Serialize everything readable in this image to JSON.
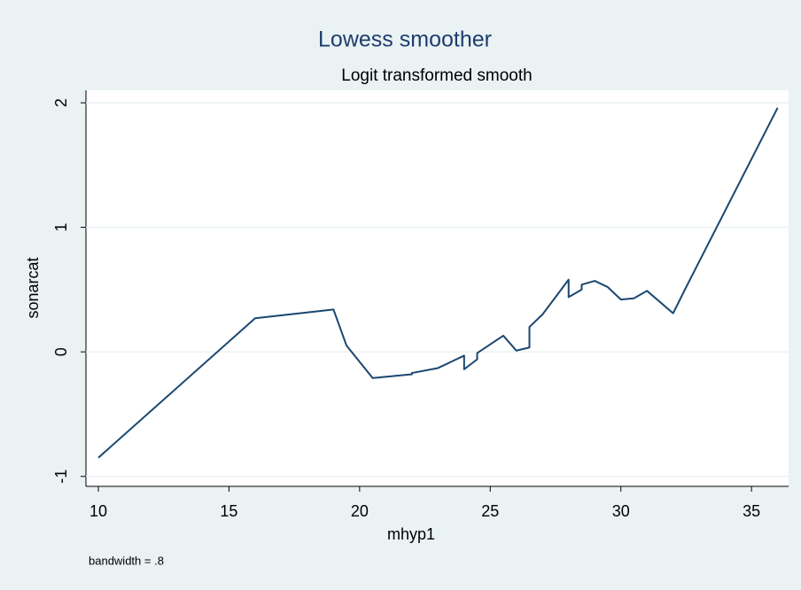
{
  "chart_data": {
    "type": "line",
    "title": "Lowess smoother",
    "subtitle": "Logit transformed smooth",
    "x_label": "mhyp1",
    "y_label": "sonarcat",
    "note": "bandwidth = .8",
    "x": [
      10,
      16,
      19,
      19.5,
      20.5,
      22,
      22,
      23,
      24,
      24,
      24.5,
      24.5,
      25.5,
      26,
      26.5,
      26.5,
      27,
      28,
      28,
      28.5,
      28.5,
      29,
      29.5,
      30,
      30.5,
      31,
      32,
      32.5,
      36
    ],
    "values": [
      -0.85,
      0.27,
      0.34,
      0.05,
      -0.21,
      -0.18,
      -0.17,
      -0.13,
      -0.03,
      -0.14,
      -0.06,
      -0.01,
      0.13,
      0.01,
      0.035,
      0.2,
      0.3,
      0.58,
      0.44,
      0.5,
      0.54,
      0.57,
      0.52,
      0.42,
      0.43,
      0.49,
      0.31,
      0.52,
      1.96
    ],
    "color": "#1a476f",
    "xlim": [
      9.525,
      36.42
    ],
    "ylim": [
      -1.08,
      2.1
    ],
    "xticks": [
      10,
      15,
      20,
      25,
      30,
      35
    ],
    "yticks": [
      -1,
      0,
      1,
      2
    ],
    "grid": true
  }
}
